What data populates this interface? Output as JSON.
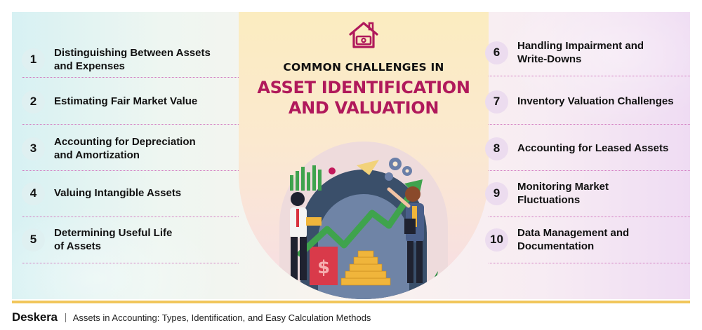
{
  "title": {
    "line1": "COMMON CHALLENGES IN",
    "line2": "ASSET IDENTIFICATION",
    "line3": "AND VALUATION"
  },
  "left_items": [
    {
      "number": "1",
      "label_line1": "Distinguishing Between Assets",
      "label_line2": "and Expenses"
    },
    {
      "number": "2",
      "label_line1": "Estimating Fair Market Value",
      "label_line2": ""
    },
    {
      "number": "3",
      "label_line1": "Accounting for Depreciation",
      "label_line2": "and Amortization"
    },
    {
      "number": "4",
      "label_line1": "Valuing Intangible Assets",
      "label_line2": ""
    },
    {
      "number": "5",
      "label_line1": "Determining Useful Life",
      "label_line2": "of Assets"
    }
  ],
  "right_items": [
    {
      "number": "6",
      "label_line1": "Handling Impairment and",
      "label_line2": "Write-Downs"
    },
    {
      "number": "7",
      "label_line1": "Inventory Valuation Challenges",
      "label_line2": ""
    },
    {
      "number": "8",
      "label_line1": "Accounting for Leased Assets",
      "label_line2": ""
    },
    {
      "number": "9",
      "label_line1": "Monitoring Market",
      "label_line2": "Fluctuations"
    },
    {
      "number": "10",
      "label_line1": "Data Management and",
      "label_line2": "Documentation"
    }
  ],
  "footer": {
    "brand": "Deskera",
    "text": "Assets in Accounting: Types, Identification, and Easy Calculation Methods"
  },
  "icons": {
    "header": "house-money-icon",
    "illustration": "business-growth-illustration"
  },
  "colors": {
    "accent": "#b0195b",
    "separator": "#d27ac0",
    "footer_bar": "#f1c65b"
  }
}
